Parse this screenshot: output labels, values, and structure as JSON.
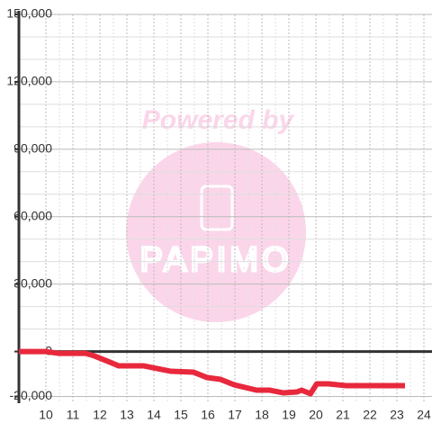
{
  "chart_data": {
    "type": "line",
    "watermark": [
      "Powered by",
      "PAPIMO"
    ],
    "x": [
      9,
      9.97,
      10.47,
      11.47,
      11.8,
      12.3,
      12.7,
      13.63,
      14.13,
      14.63,
      15.47,
      15.97,
      16.47,
      16.97,
      17.8,
      18.3,
      18.8,
      19.3,
      19.47,
      19.8,
      20.03,
      20.47,
      21.13,
      23.3
    ],
    "series": [
      {
        "color": "#e8283c",
        "values": [
          0,
          0,
          -800,
          -800,
          -2000,
          -4400,
          -6400,
          -6400,
          -7600,
          -8800,
          -9200,
          -11600,
          -12400,
          -14800,
          -17200,
          -17200,
          -18400,
          -18000,
          -17200,
          -18800,
          -14400,
          -14400,
          -15200,
          -15200
        ]
      }
    ],
    "xlim": [
      9,
      24.3
    ],
    "xticks": [
      10,
      11,
      12,
      13,
      14,
      15,
      16,
      17,
      18,
      19,
      20,
      21,
      22,
      23,
      24
    ],
    "ylim": [
      -23000,
      150000
    ],
    "yticks": [
      {
        "value": -20000,
        "label": "-20,000"
      },
      0,
      {
        "value": 30000,
        "label": "30,000"
      },
      {
        "value": 60000,
        "label": "60,000"
      },
      {
        "value": 90000,
        "label": "90,000"
      },
      {
        "value": 120000,
        "label": "120,000"
      },
      {
        "value": 150000,
        "label": "150,000"
      }
    ],
    "grid": true
  }
}
